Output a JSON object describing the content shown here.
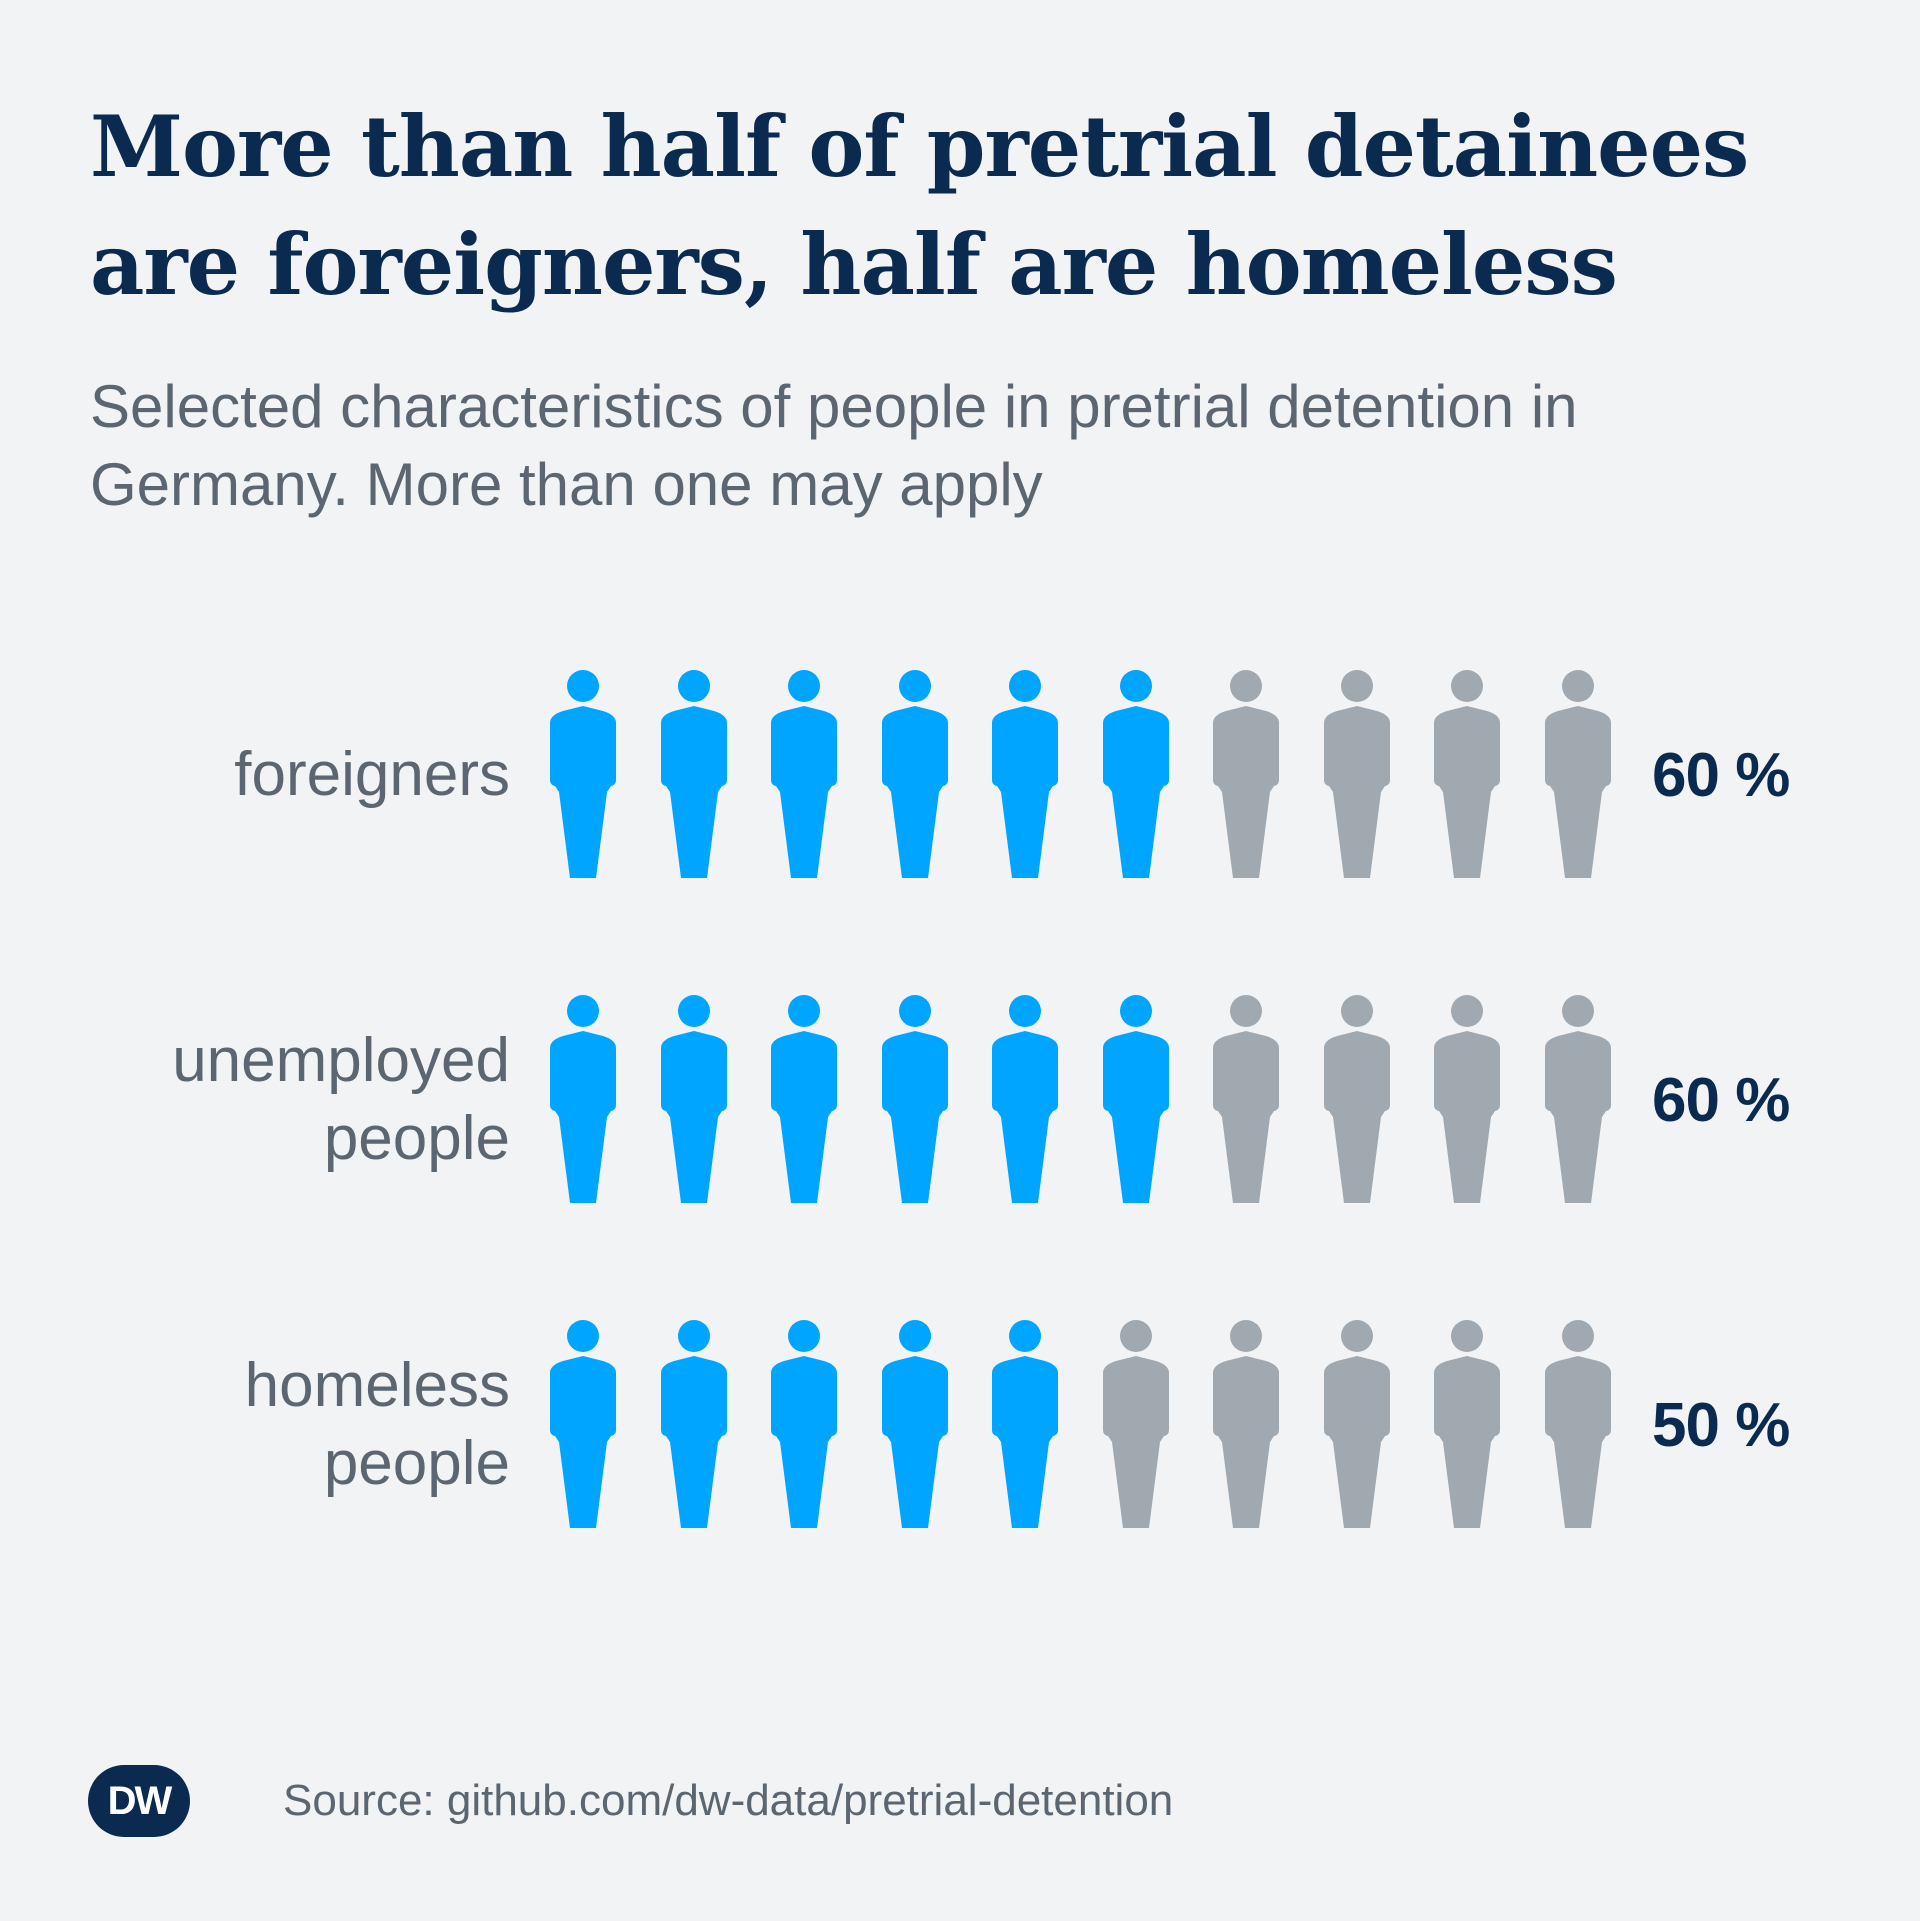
{
  "colors": {
    "background": "#f1f3f5",
    "highlight": "#00a5ff",
    "neutral": "#a0a9b0",
    "title": "#0b2a4f",
    "text": "#5b6670"
  },
  "title": "More than half of pretrial detainees are foreigners, half are homeless",
  "subtitle": "Selected characteristics of people in pretrial detention in Germany. More than one may apply",
  "chart_data": {
    "type": "pictograph",
    "icon": "person-icon",
    "units_per_row": 10,
    "categories": [
      "foreigners",
      "unemployed\npeople",
      "homeless\npeople"
    ],
    "values": [
      60,
      60,
      50
    ],
    "value_labels": [
      "60 %",
      "60 %",
      "50 %"
    ]
  },
  "footer": {
    "logo_text": "DW",
    "source": "Source: github.com/dw-data/pretrial-detention"
  }
}
